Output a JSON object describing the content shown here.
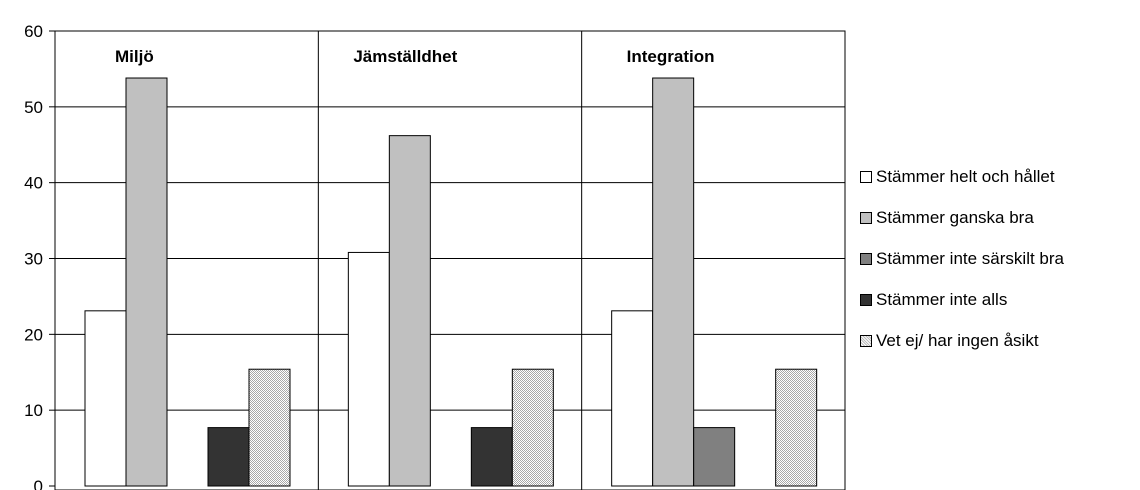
{
  "header_fragment": "",
  "chart_data": {
    "type": "bar",
    "title": "",
    "ylabel": "",
    "ylim": [
      0,
      60
    ],
    "yticks": [
      "0",
      "10",
      "20",
      "30",
      "40",
      "50",
      "60"
    ],
    "groups": [
      "Miljö",
      "Jämställdhet",
      "Integration"
    ],
    "series": [
      {
        "name": "Stämmer helt och hållet",
        "values": [
          23.1,
          30.8,
          23.1
        ],
        "color": "#ffffff"
      },
      {
        "name": "Stämmer ganska bra",
        "values": [
          53.8,
          46.2,
          53.8
        ],
        "color": "#c0c0c0"
      },
      {
        "name": "Stämmer inte särskilt bra",
        "values": [
          0,
          0,
          7.7
        ],
        "color": "#808080"
      },
      {
        "name": "Stämmer inte alls",
        "values": [
          7.7,
          7.7,
          0
        ],
        "color": "#333333"
      },
      {
        "name": "Vet ej/ har ingen åsikt",
        "values": [
          15.4,
          15.4,
          15.4
        ],
        "color": "#dcdcdc",
        "pattern": "dotted"
      }
    ],
    "grid": true,
    "legend_position": "right"
  }
}
